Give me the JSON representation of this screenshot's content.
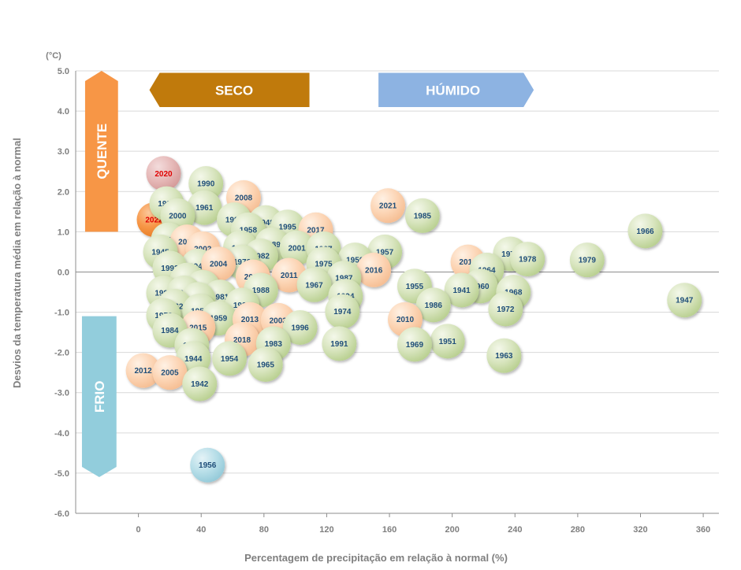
{
  "chart_data": {
    "type": "scatter",
    "title": "",
    "xlabel": "Percentagem de precipitação em relação à normal (%)",
    "ylabel": "Desvios da temperatura média em relação à normal",
    "yunit": "(°C)",
    "xlim": [
      -40,
      370
    ],
    "ylim": [
      -6.0,
      5.0
    ],
    "xticks": [
      0,
      40,
      80,
      120,
      160,
      200,
      240,
      280,
      320,
      360
    ],
    "yticks": [
      5.0,
      4.0,
      3.0,
      2.0,
      1.0,
      0.0,
      -1.0,
      -2.0,
      -3.0,
      -4.0,
      -5.0,
      -6.0
    ],
    "ytick_labels": [
      "5.0",
      "4.0",
      "3.0",
      "2.0",
      "1.0",
      "0.0",
      "-1.0",
      "-2.0",
      "-3.0",
      "-4.0",
      "-5.0",
      "-6.0"
    ],
    "grid": "horizontal",
    "annotations": [
      {
        "text": "SECO",
        "kind": "arrow-left",
        "color": "#c07a0c",
        "x_range": [
          7,
          109
        ],
        "y_range": [
          4.1,
          4.95
        ]
      },
      {
        "text": "HÚMIDO",
        "kind": "arrow-right",
        "color": "#8db3e2",
        "x_range": [
          153,
          252
        ],
        "y_range": [
          4.1,
          4.95
        ]
      },
      {
        "text": "QUENTE",
        "kind": "arrow-up",
        "color": "#f79646",
        "x_range": [
          -34,
          -13
        ],
        "y_range": [
          1.0,
          5.0
        ]
      },
      {
        "text": "FRIO",
        "kind": "arrow-down",
        "color": "#92cddc",
        "x_range": [
          -36,
          -14
        ],
        "y_range": [
          -5.1,
          -1.1
        ]
      }
    ],
    "category_colors": {
      "normal": "#d7e4bd",
      "recent": "#fcd5b5",
      "highlight_2020": "#e6b9b8",
      "highlight_2022": "#f79646",
      "cold_1956": "#b7dee8"
    },
    "points": [
      {
        "year": "2020",
        "x": 16,
        "y": 2.45,
        "category": "highlight_2020",
        "label_color": "#e00000"
      },
      {
        "year": "2022",
        "x": 10,
        "y": 1.3,
        "category": "highlight_2022",
        "label_color": "#e00000"
      },
      {
        "year": "1990",
        "x": 43,
        "y": 2.2,
        "category": "normal",
        "label_color": "#1f4e79"
      },
      {
        "year": "2008",
        "x": 67,
        "y": 1.85,
        "category": "recent",
        "label_color": "#1f4e79"
      },
      {
        "year": "1997",
        "x": 18,
        "y": 1.7,
        "category": "normal",
        "label_color": "#1f4e79"
      },
      {
        "year": "1961",
        "x": 42,
        "y": 1.6,
        "category": "normal",
        "label_color": "#1f4e79"
      },
      {
        "year": "2000",
        "x": 25,
        "y": 1.4,
        "category": "normal",
        "label_color": "#1f4e79"
      },
      {
        "year": "1998",
        "x": 61,
        "y": 1.3,
        "category": "normal",
        "label_color": "#1f4e79"
      },
      {
        "year": "1948",
        "x": 81,
        "y": 1.23,
        "category": "normal",
        "label_color": "#1f4e79"
      },
      {
        "year": "1958",
        "x": 70,
        "y": 1.05,
        "category": "normal",
        "label_color": "#1f4e79"
      },
      {
        "year": "1995",
        "x": 95,
        "y": 1.12,
        "category": "normal",
        "label_color": "#1f4e79"
      },
      {
        "year": "2017",
        "x": 113,
        "y": 1.05,
        "category": "recent",
        "label_color": "#1f4e79"
      },
      {
        "year": "2021",
        "x": 159,
        "y": 1.65,
        "category": "recent",
        "label_color": "#1f4e79"
      },
      {
        "year": "1985",
        "x": 181,
        "y": 1.4,
        "category": "normal",
        "label_color": "#1f4e79"
      },
      {
        "year": "1966",
        "x": 323,
        "y": 1.02,
        "category": "normal",
        "label_color": "#1f4e79"
      },
      {
        "year": "1939",
        "x": 19,
        "y": 0.8,
        "category": "normal",
        "label_color": "#1f4e79"
      },
      {
        "year": "2019",
        "x": 31,
        "y": 0.75,
        "category": "recent",
        "label_color": "#1f4e79"
      },
      {
        "year": "1945",
        "x": 14,
        "y": 0.5,
        "category": "normal",
        "label_color": "#1f4e79"
      },
      {
        "year": "1980",
        "x": 65,
        "y": 0.6,
        "category": "normal",
        "label_color": "#1f4e79"
      },
      {
        "year": "1989",
        "x": 85,
        "y": 0.68,
        "category": "normal",
        "label_color": "#1f4e79"
      },
      {
        "year": "2001",
        "x": 101,
        "y": 0.6,
        "category": "normal",
        "label_color": "#1f4e79"
      },
      {
        "year": "1997",
        "x": 118,
        "y": 0.58,
        "category": "normal",
        "label_color": "#1f4e79"
      },
      {
        "year": "1957",
        "x": 157,
        "y": 0.5,
        "category": "normal",
        "label_color": "#1f4e79"
      },
      {
        "year": "2002",
        "x": 41,
        "y": 0.58,
        "category": "recent",
        "label_color": "#1f4e79"
      },
      {
        "year": "1982",
        "x": 78,
        "y": 0.4,
        "category": "normal",
        "label_color": "#1f4e79"
      },
      {
        "year": "1976",
        "x": 66,
        "y": 0.25,
        "category": "normal",
        "label_color": "#1f4e79"
      },
      {
        "year": "1950",
        "x": 138,
        "y": 0.3,
        "category": "normal",
        "label_color": "#1f4e79"
      },
      {
        "year": "1975",
        "x": 118,
        "y": 0.2,
        "category": "normal",
        "label_color": "#1f4e79"
      },
      {
        "year": "2014",
        "x": 210,
        "y": 0.25,
        "category": "recent",
        "label_color": "#1f4e79"
      },
      {
        "year": "1977",
        "x": 237,
        "y": 0.45,
        "category": "normal",
        "label_color": "#1f4e79"
      },
      {
        "year": "1978",
        "x": 248,
        "y": 0.32,
        "category": "normal",
        "label_color": "#1f4e79"
      },
      {
        "year": "1979",
        "x": 286,
        "y": 0.3,
        "category": "normal",
        "label_color": "#1f4e79"
      },
      {
        "year": "1946",
        "x": 38,
        "y": 0.15,
        "category": "normal",
        "label_color": "#1f4e79"
      },
      {
        "year": "2004",
        "x": 51,
        "y": 0.2,
        "category": "recent",
        "label_color": "#1f4e79"
      },
      {
        "year": "1993",
        "x": 20,
        "y": 0.1,
        "category": "normal",
        "label_color": "#1f4e79"
      },
      {
        "year": "1964",
        "x": 222,
        "y": 0.05,
        "category": "normal",
        "label_color": "#1f4e79"
      },
      {
        "year": "2016",
        "x": 150,
        "y": 0.05,
        "category": "recent",
        "label_color": "#1f4e79"
      },
      {
        "year": "2009",
        "x": 73,
        "y": -0.12,
        "category": "recent",
        "label_color": "#1f4e79"
      },
      {
        "year": "2011",
        "x": 96,
        "y": -0.08,
        "category": "recent",
        "label_color": "#1f4e79"
      },
      {
        "year": "1987",
        "x": 131,
        "y": -0.15,
        "category": "normal",
        "label_color": "#1f4e79"
      },
      {
        "year": "1971",
        "x": 31,
        "y": -0.2,
        "category": "normal",
        "label_color": "#1f4e79"
      },
      {
        "year": "1967",
        "x": 112,
        "y": -0.32,
        "category": "normal",
        "label_color": "#1f4e79"
      },
      {
        "year": "1955",
        "x": 176,
        "y": -0.35,
        "category": "normal",
        "label_color": "#1f4e79"
      },
      {
        "year": "1960",
        "x": 218,
        "y": -0.35,
        "category": "normal",
        "label_color": "#1f4e79"
      },
      {
        "year": "1941",
        "x": 206,
        "y": -0.45,
        "category": "normal",
        "label_color": "#1f4e79"
      },
      {
        "year": "1968",
        "x": 239,
        "y": -0.5,
        "category": "normal",
        "label_color": "#1f4e79"
      },
      {
        "year": "1943",
        "x": 41,
        "y": -0.38,
        "category": "normal",
        "label_color": "#1f4e79"
      },
      {
        "year": "1988",
        "x": 78,
        "y": -0.45,
        "category": "normal",
        "label_color": "#1f4e79"
      },
      {
        "year": "1999",
        "x": 16,
        "y": -0.52,
        "category": "normal",
        "label_color": "#1f4e79"
      },
      {
        "year": "1992",
        "x": 29,
        "y": -0.52,
        "category": "normal",
        "label_color": "#1f4e79"
      },
      {
        "year": "1981",
        "x": 52,
        "y": -0.62,
        "category": "normal",
        "label_color": "#1f4e79"
      },
      {
        "year": "1970",
        "x": 38,
        "y": -0.68,
        "category": "normal",
        "label_color": "#1f4e79"
      },
      {
        "year": "1994",
        "x": 132,
        "y": -0.6,
        "category": "normal",
        "label_color": "#1f4e79"
      },
      {
        "year": "1986",
        "x": 188,
        "y": -0.82,
        "category": "normal",
        "label_color": "#1f4e79"
      },
      {
        "year": "1996",
        "x": 66,
        "y": -0.82,
        "category": "normal",
        "label_color": "#1f4e79"
      },
      {
        "year": "1962",
        "x": 23,
        "y": -0.85,
        "category": "normal",
        "label_color": "#1f4e79"
      },
      {
        "year": "1952",
        "x": 39,
        "y": -0.97,
        "category": "normal",
        "label_color": "#1f4e79"
      },
      {
        "year": "1974",
        "x": 130,
        "y": -0.98,
        "category": "normal",
        "label_color": "#1f4e79"
      },
      {
        "year": "1972",
        "x": 234,
        "y": -0.92,
        "category": "normal",
        "label_color": "#1f4e79"
      },
      {
        "year": "1947",
        "x": 348,
        "y": -0.7,
        "category": "normal",
        "label_color": "#1f4e79"
      },
      {
        "year": "1973",
        "x": 16,
        "y": -1.08,
        "category": "normal",
        "label_color": "#1f4e79"
      },
      {
        "year": "1959",
        "x": 51,
        "y": -1.15,
        "category": "normal",
        "label_color": "#1f4e79"
      },
      {
        "year": "2013",
        "x": 71,
        "y": -1.18,
        "category": "recent",
        "label_color": "#1f4e79"
      },
      {
        "year": "2003",
        "x": 89,
        "y": -1.2,
        "category": "recent",
        "label_color": "#1f4e79"
      },
      {
        "year": "2010",
        "x": 170,
        "y": -1.18,
        "category": "recent",
        "label_color": "#1f4e79"
      },
      {
        "year": "1996",
        "x": 103,
        "y": -1.38,
        "category": "normal",
        "label_color": "#1f4e79"
      },
      {
        "year": "2015",
        "x": 38,
        "y": -1.38,
        "category": "recent",
        "label_color": "#1f4e79"
      },
      {
        "year": "1984",
        "x": 20,
        "y": -1.45,
        "category": "normal",
        "label_color": "#1f4e79"
      },
      {
        "year": "2018",
        "x": 66,
        "y": -1.68,
        "category": "recent",
        "label_color": "#1f4e79"
      },
      {
        "year": "1991",
        "x": 128,
        "y": -1.78,
        "category": "normal",
        "label_color": "#1f4e79"
      },
      {
        "year": "1983",
        "x": 86,
        "y": -1.78,
        "category": "normal",
        "label_color": "#1f4e79"
      },
      {
        "year": "1953",
        "x": 34,
        "y": -1.82,
        "category": "normal",
        "label_color": "#1f4e79"
      },
      {
        "year": "1951",
        "x": 197,
        "y": -1.72,
        "category": "normal",
        "label_color": "#1f4e79"
      },
      {
        "year": "1969",
        "x": 176,
        "y": -1.8,
        "category": "normal",
        "label_color": "#1f4e79"
      },
      {
        "year": "1963",
        "x": 233,
        "y": -2.08,
        "category": "normal",
        "label_color": "#1f4e79"
      },
      {
        "year": "1944",
        "x": 35,
        "y": -2.15,
        "category": "normal",
        "label_color": "#1f4e79"
      },
      {
        "year": "1954",
        "x": 58,
        "y": -2.15,
        "category": "normal",
        "label_color": "#1f4e79"
      },
      {
        "year": "1965",
        "x": 81,
        "y": -2.3,
        "category": "normal",
        "label_color": "#1f4e79"
      },
      {
        "year": "2012",
        "x": 3,
        "y": -2.45,
        "category": "recent",
        "label_color": "#1f4e79"
      },
      {
        "year": "2005",
        "x": 20,
        "y": -2.5,
        "category": "recent",
        "label_color": "#1f4e79"
      },
      {
        "year": "1942",
        "x": 39,
        "y": -2.78,
        "category": "normal",
        "label_color": "#1f4e79"
      },
      {
        "year": "1956",
        "x": 44,
        "y": -4.8,
        "category": "cold_1956",
        "label_color": "#1f4e79"
      }
    ]
  }
}
